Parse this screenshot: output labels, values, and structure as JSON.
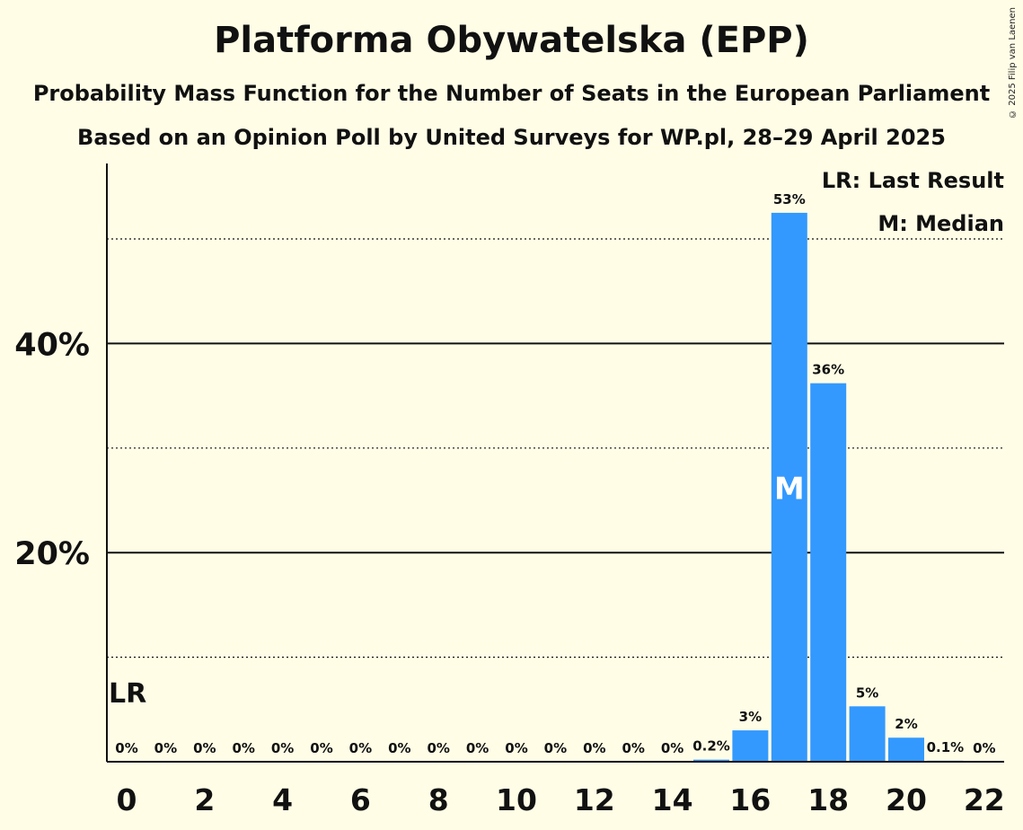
{
  "title": "Platforma Obywatelska (EPP)",
  "subtitle": "Probability Mass Function for the Number of Seats in the European Parliament",
  "subtitle2": "Based on an Opinion Poll by United Surveys for WP.pl, 28–29 April 2025",
  "copyright": "© 2025 Filip van Laenen",
  "legend": {
    "last_result": "LR: Last Result",
    "median": "M: Median"
  },
  "colors": {
    "bar": "#3399ff",
    "background": "#fffde6",
    "text": "#111111"
  },
  "chart_data": {
    "type": "bar",
    "x": [
      0,
      1,
      2,
      3,
      4,
      5,
      6,
      7,
      8,
      9,
      10,
      11,
      12,
      13,
      14,
      15,
      16,
      17,
      18,
      19,
      20,
      21,
      22
    ],
    "values": [
      0,
      0,
      0,
      0,
      0,
      0,
      0,
      0,
      0,
      0,
      0,
      0,
      0,
      0,
      0,
      0.2,
      3,
      52.5,
      36.2,
      5.3,
      2.3,
      0.1,
      0
    ],
    "labels": [
      "0%",
      "0%",
      "0%",
      "0%",
      "0%",
      "0%",
      "0%",
      "0%",
      "0%",
      "0%",
      "0%",
      "0%",
      "0%",
      "0%",
      "0%",
      "0.2%",
      "3%",
      "53%",
      "36%",
      "5%",
      "2%",
      "0.1%",
      "0%"
    ],
    "x_tick_labels": [
      "0",
      "2",
      "4",
      "6",
      "8",
      "10",
      "12",
      "14",
      "16",
      "18",
      "20",
      "22"
    ],
    "y_tick_labels": [
      "20%",
      "40%"
    ],
    "ylim": [
      0,
      57
    ],
    "grid_solid": [
      20,
      40
    ],
    "grid_dotted": [
      10,
      30,
      50
    ],
    "last_result_seat": 0,
    "last_result_label": "LR",
    "median_seat": 17,
    "median_label": "M"
  }
}
